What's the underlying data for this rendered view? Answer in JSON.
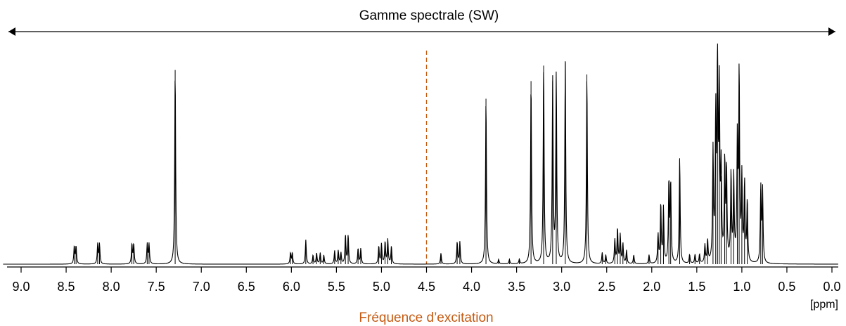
{
  "colors": {
    "spectrum": "#000000",
    "excitation": "#c55a11",
    "axis": "#000000"
  },
  "chart_data": {
    "type": "line",
    "title": "Gamme spectrale (SW)",
    "xlabel": "[ppm]",
    "annotation": "Fréquence d’excitation",
    "excitation_ppm": 4.5,
    "xlim": [
      9.2,
      0.0
    ],
    "x_reversed": true,
    "ylim": [
      0,
      1.0
    ],
    "ticks": [
      9.0,
      8.5,
      8.0,
      7.5,
      7.0,
      6.5,
      6.0,
      5.5,
      5.0,
      4.5,
      4.0,
      3.5,
      3.0,
      2.5,
      2.0,
      1.5,
      1.0,
      0.5,
      0.0
    ],
    "tick_labels": [
      "9.0",
      "8.5",
      "8.0",
      "7.5",
      "7.0",
      "6.5",
      "6.0",
      "5.5",
      "5.0",
      "4.5",
      "4.0",
      "3.5",
      "3.0",
      "2.5",
      "2.0",
      "1.5",
      "1.0",
      "0.5",
      "0.0"
    ],
    "peaks": [
      {
        "ppm": 8.41,
        "height": 0.08
      },
      {
        "ppm": 8.39,
        "height": 0.08
      },
      {
        "ppm": 8.15,
        "height": 0.09
      },
      {
        "ppm": 8.13,
        "height": 0.09
      },
      {
        "ppm": 7.77,
        "height": 0.09
      },
      {
        "ppm": 7.75,
        "height": 0.09
      },
      {
        "ppm": 7.6,
        "height": 0.09
      },
      {
        "ppm": 7.58,
        "height": 0.09
      },
      {
        "ppm": 7.29,
        "height": 0.88
      },
      {
        "ppm": 6.01,
        "height": 0.05
      },
      {
        "ppm": 5.99,
        "height": 0.05
      },
      {
        "ppm": 5.84,
        "height": 0.11
      },
      {
        "ppm": 5.76,
        "height": 0.04
      },
      {
        "ppm": 5.72,
        "height": 0.05
      },
      {
        "ppm": 5.68,
        "height": 0.05
      },
      {
        "ppm": 5.64,
        "height": 0.04
      },
      {
        "ppm": 5.52,
        "height": 0.06
      },
      {
        "ppm": 5.48,
        "height": 0.06
      },
      {
        "ppm": 5.45,
        "height": 0.05
      },
      {
        "ppm": 5.4,
        "height": 0.13
      },
      {
        "ppm": 5.37,
        "height": 0.13
      },
      {
        "ppm": 5.26,
        "height": 0.07
      },
      {
        "ppm": 5.23,
        "height": 0.07
      },
      {
        "ppm": 5.03,
        "height": 0.08
      },
      {
        "ppm": 5.0,
        "height": 0.09
      },
      {
        "ppm": 4.96,
        "height": 0.1
      },
      {
        "ppm": 4.93,
        "height": 0.11
      },
      {
        "ppm": 4.89,
        "height": 0.08
      },
      {
        "ppm": 4.34,
        "height": 0.05
      },
      {
        "ppm": 4.16,
        "height": 0.1
      },
      {
        "ppm": 4.13,
        "height": 0.1
      },
      {
        "ppm": 3.84,
        "height": 0.75
      },
      {
        "ppm": 3.7,
        "height": 0.02
      },
      {
        "ppm": 3.58,
        "height": 0.02
      },
      {
        "ppm": 3.47,
        "height": 0.02
      },
      {
        "ppm": 3.34,
        "height": 0.83
      },
      {
        "ppm": 3.2,
        "height": 0.9
      },
      {
        "ppm": 3.1,
        "height": 0.83
      },
      {
        "ppm": 3.06,
        "height": 0.86
      },
      {
        "ppm": 2.96,
        "height": 0.92
      },
      {
        "ppm": 2.72,
        "height": 0.86
      },
      {
        "ppm": 2.55,
        "height": 0.05
      },
      {
        "ppm": 2.51,
        "height": 0.04
      },
      {
        "ppm": 2.41,
        "height": 0.11
      },
      {
        "ppm": 2.38,
        "height": 0.16
      },
      {
        "ppm": 2.35,
        "height": 0.13
      },
      {
        "ppm": 2.32,
        "height": 0.09
      },
      {
        "ppm": 2.28,
        "height": 0.06
      },
      {
        "ppm": 2.2,
        "height": 0.04
      },
      {
        "ppm": 2.03,
        "height": 0.04
      },
      {
        "ppm": 1.93,
        "height": 0.13
      },
      {
        "ppm": 1.9,
        "height": 0.27
      },
      {
        "ppm": 1.87,
        "height": 0.25
      },
      {
        "ppm": 1.81,
        "height": 0.37
      },
      {
        "ppm": 1.79,
        "height": 0.36
      },
      {
        "ppm": 1.69,
        "height": 0.48
      },
      {
        "ppm": 1.58,
        "height": 0.04
      },
      {
        "ppm": 1.52,
        "height": 0.04
      },
      {
        "ppm": 1.47,
        "height": 0.04
      },
      {
        "ppm": 1.41,
        "height": 0.08
      },
      {
        "ppm": 1.38,
        "height": 0.1
      },
      {
        "ppm": 1.32,
        "height": 0.5
      },
      {
        "ppm": 1.29,
        "height": 0.65
      },
      {
        "ppm": 1.27,
        "height": 0.97
      },
      {
        "ppm": 1.25,
        "height": 0.75
      },
      {
        "ppm": 1.23,
        "height": 0.4
      },
      {
        "ppm": 1.19,
        "height": 0.45
      },
      {
        "ppm": 1.17,
        "height": 0.42
      },
      {
        "ppm": 1.12,
        "height": 0.4
      },
      {
        "ppm": 1.09,
        "height": 0.38
      },
      {
        "ppm": 1.05,
        "height": 0.55
      },
      {
        "ppm": 1.03,
        "height": 0.86
      },
      {
        "ppm": 1.0,
        "height": 0.38
      },
      {
        "ppm": 0.97,
        "height": 0.36
      },
      {
        "ppm": 0.94,
        "height": 0.28
      },
      {
        "ppm": 0.79,
        "height": 0.34
      },
      {
        "ppm": 0.77,
        "height": 0.33
      }
    ]
  }
}
